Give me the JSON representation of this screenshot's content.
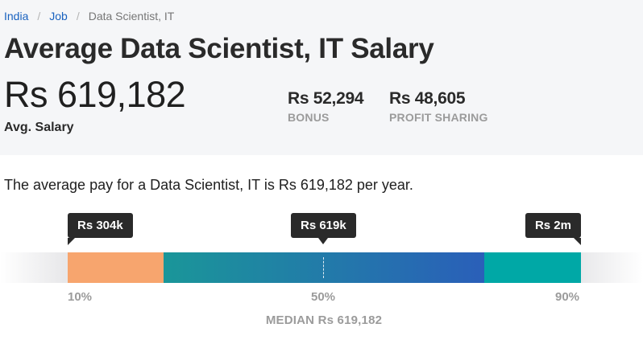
{
  "breadcrumb": {
    "items": [
      {
        "label": "India",
        "link": true
      },
      {
        "label": "Job",
        "link": true
      },
      {
        "label": "Data Scientist, IT",
        "link": false
      }
    ],
    "separator": "/"
  },
  "header": {
    "title": "Average Data Scientist, IT Salary",
    "avg_salary": "Rs 619,182",
    "avg_salary_label": "Avg. Salary",
    "bonus_value": "Rs 52,294",
    "bonus_label": "BONUS",
    "profit_sharing_value": "Rs 48,605",
    "profit_sharing_label": "PROFIT SHARING"
  },
  "summary": "The average pay for a Data Scientist, IT is Rs 619,182 per year.",
  "range": {
    "low_tooltip": "Rs 304k",
    "median_tooltip": "Rs 619k",
    "high_tooltip": "Rs 2m",
    "low_pct": "10%",
    "median_pct": "50%",
    "high_pct": "90%",
    "median_label": "MEDIAN Rs 619,182"
  },
  "colors": {
    "link": "#1861bf",
    "low_segment": "#f7a56e",
    "mid_segment_start": "#1a9699",
    "mid_segment_end": "#2a5fb9",
    "high_segment": "#00a8a6",
    "tooltip_bg": "#2a2a2a"
  }
}
